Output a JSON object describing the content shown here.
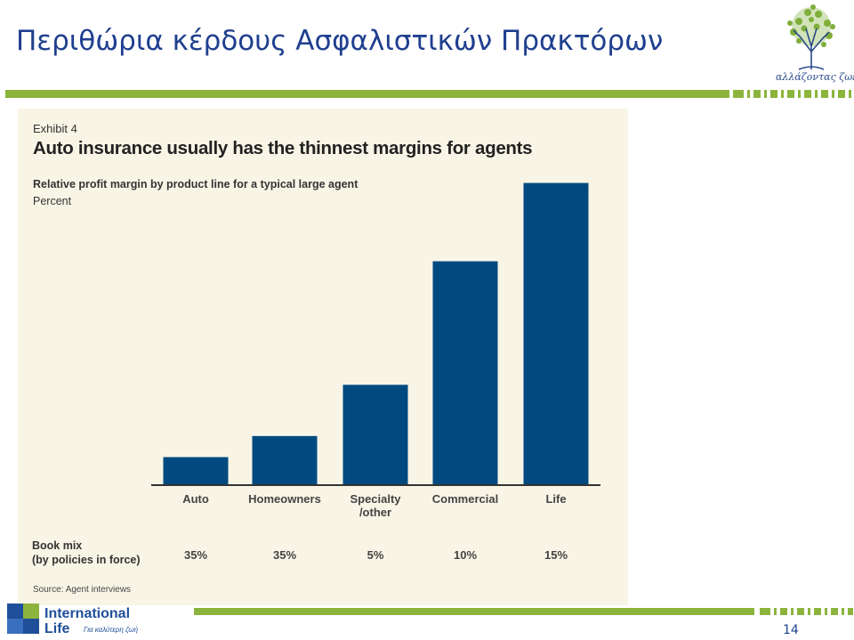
{
  "slide": {
    "title": "Περιθώρια κέρδους Ασφαλιστικών Πρακτόρων",
    "page_number": "14",
    "brand_caption": "αλλάζοντας ζωές",
    "logo": {
      "name_line1": "International",
      "name_line2": "Life",
      "tagline": "Για καλύτερη ζωή"
    }
  },
  "colors": {
    "title": "#1f3f8f",
    "accent_green": "#8cb43c",
    "bar": "#004a80",
    "panel": "#f8f5e6",
    "logo_blue": "#1f4f99"
  },
  "chart_data": {
    "type": "bar",
    "exhibit_label": "Exhibit 4",
    "title": "Auto insurance usually has the thinnest margins for agents",
    "subtitle": "Relative profit margin by product line for a typical large agent",
    "unit": "Percent",
    "categories": [
      "Auto",
      "Homeowners",
      "Specialty /other",
      "Commercial",
      "Life"
    ],
    "category_lines": [
      [
        "Auto"
      ],
      [
        "Homeowners"
      ],
      [
        "Specialty",
        "/other"
      ],
      [
        "Commercial"
      ],
      [
        "Life"
      ]
    ],
    "values": [
      4.5,
      8.0,
      16.5,
      37.0,
      50.0
    ],
    "ylim": [
      0,
      52
    ],
    "book_mix": {
      "label_line1": "Book mix",
      "label_line2": "(by policies in force)",
      "values": [
        "35%",
        "35%",
        "5%",
        "10%",
        "15%"
      ]
    },
    "source": "Source: Agent interviews",
    "grid": false,
    "legend": "none"
  }
}
